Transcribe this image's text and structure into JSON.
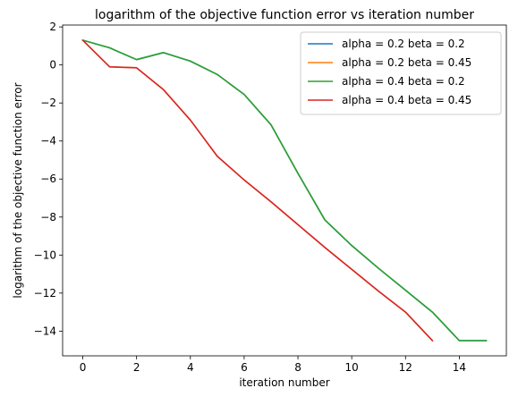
{
  "chart_data": {
    "type": "line",
    "title": "logarithm of the objective function error vs iteration number",
    "xlabel": "iteration number",
    "ylabel": "logarithm of the objective function error",
    "xlim": [
      -0.75,
      15.75
    ],
    "ylim": [
      -15.3,
      2.1
    ],
    "xticks": [
      0,
      2,
      4,
      6,
      8,
      10,
      12,
      14
    ],
    "yticks": [
      2,
      0,
      -2,
      -4,
      -6,
      -8,
      -10,
      -12,
      -14
    ],
    "xtick_labels": [
      "0",
      "2",
      "4",
      "6",
      "8",
      "10",
      "12",
      "14"
    ],
    "ytick_labels": [
      "2",
      "0",
      "−2",
      "−4",
      "−6",
      "−8",
      "−10",
      "−12",
      "−14"
    ],
    "grid": false,
    "legend_position": "top-right",
    "series": [
      {
        "name": "alpha = 0.2 beta = 0.2",
        "color": "#1f77b4",
        "x": [
          0,
          1,
          2,
          3,
          4,
          5,
          6,
          7,
          8,
          9,
          10,
          11,
          12,
          13,
          14,
          15
        ],
        "values": [
          1.3,
          0.9,
          0.28,
          0.65,
          0.2,
          -0.5,
          -1.55,
          -3.15,
          -5.7,
          -8.15,
          -9.5,
          -10.7,
          -11.85,
          -13.0,
          -14.5,
          -14.5
        ]
      },
      {
        "name": "alpha = 0.2 beta = 0.45",
        "color": "#ff7f0e",
        "x": [
          0,
          1,
          2,
          3,
          4,
          5,
          6,
          7,
          8,
          9,
          10,
          11,
          12,
          13
        ],
        "values": [
          1.3,
          -0.1,
          -0.15,
          -1.3,
          -2.9,
          -4.8,
          -6.05,
          -7.2,
          -8.4,
          -9.6,
          -10.75,
          -11.9,
          -13.0,
          -14.5
        ]
      },
      {
        "name": "alpha = 0.4 beta = 0.2",
        "color": "#2ca02c",
        "x": [
          0,
          1,
          2,
          3,
          4,
          5,
          6,
          7,
          8,
          9,
          10,
          11,
          12,
          13,
          14,
          15
        ],
        "values": [
          1.3,
          0.9,
          0.28,
          0.65,
          0.2,
          -0.5,
          -1.55,
          -3.15,
          -5.7,
          -8.15,
          -9.5,
          -10.7,
          -11.85,
          -13.0,
          -14.5,
          -14.5
        ]
      },
      {
        "name": "alpha = 0.4 beta = 0.45",
        "color": "#d62728",
        "x": [
          0,
          1,
          2,
          3,
          4,
          5,
          6,
          7,
          8,
          9,
          10,
          11,
          12,
          13
        ],
        "values": [
          1.3,
          -0.1,
          -0.15,
          -1.3,
          -2.9,
          -4.8,
          -6.05,
          -7.2,
          -8.4,
          -9.6,
          -10.75,
          -11.9,
          -13.0,
          -14.5
        ]
      }
    ]
  }
}
